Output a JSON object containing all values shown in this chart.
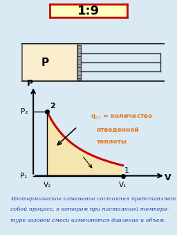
{
  "bg_color": "#daeaf5",
  "outer_border_color": "#a0c8e8",
  "title_text": "1:9",
  "title_bg": "#ffffc0",
  "title_border": "#cc0000",
  "box_color": "#faeece",
  "box_border": "#888888",
  "description_line1": "Изотермическое изменение состояния представляет",
  "description_line2": "собой процесс, в котором при постоянной темпера-",
  "description_line3": "туре газовой смеси изменяются давление и объем.",
  "annot_line1": "q",
  "annot_line2": "количество",
  "annot_line3": "отведенной",
  "annot_line4": "теплоты",
  "label_P": "P",
  "label_V": "V",
  "label_P1": "P₁",
  "label_P2": "P₂",
  "label_V1": "V₁",
  "label_V2": "V₂",
  "label_1": "1",
  "label_2": "2",
  "curve_color": "#cc0000",
  "fill_color": "#f5e5b0",
  "text_color": "#e07820",
  "desc_color": "#2244aa"
}
